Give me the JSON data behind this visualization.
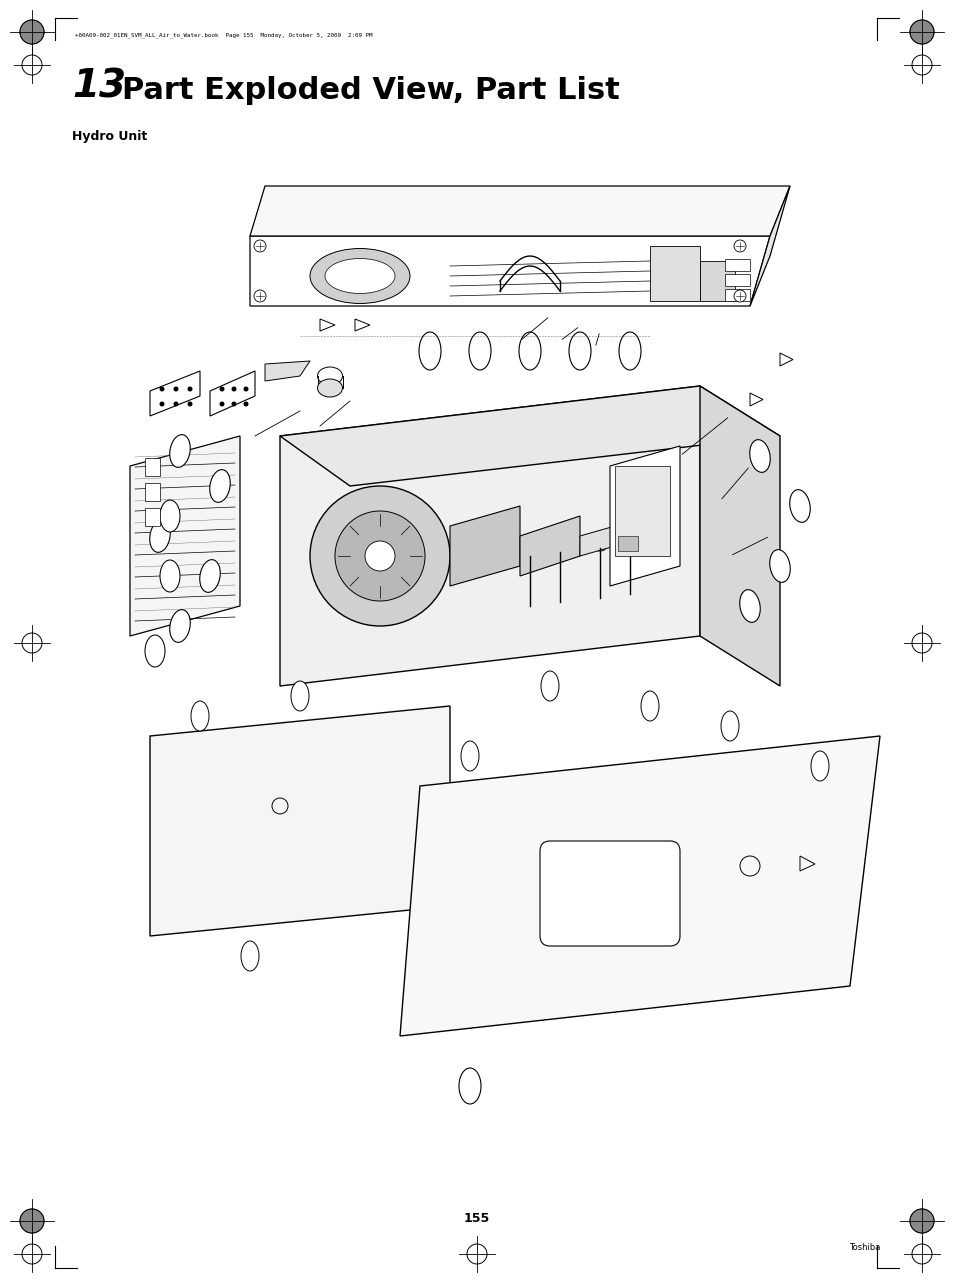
{
  "background_color": "#ffffff",
  "page_width": 9.54,
  "page_height": 12.86,
  "title_number": "13",
  "title_text": "Part Exploded View, Part List",
  "subtitle": "Hydro Unit",
  "page_number": "155",
  "header_text": "+00A09-002_01EN_SVM_ALL_Air_to_Water.book  Page 155  Monday, October 5, 2009  2:09 PM",
  "footer_brand": "Toshiba",
  "border_color": "#000000",
  "text_color": "#000000"
}
